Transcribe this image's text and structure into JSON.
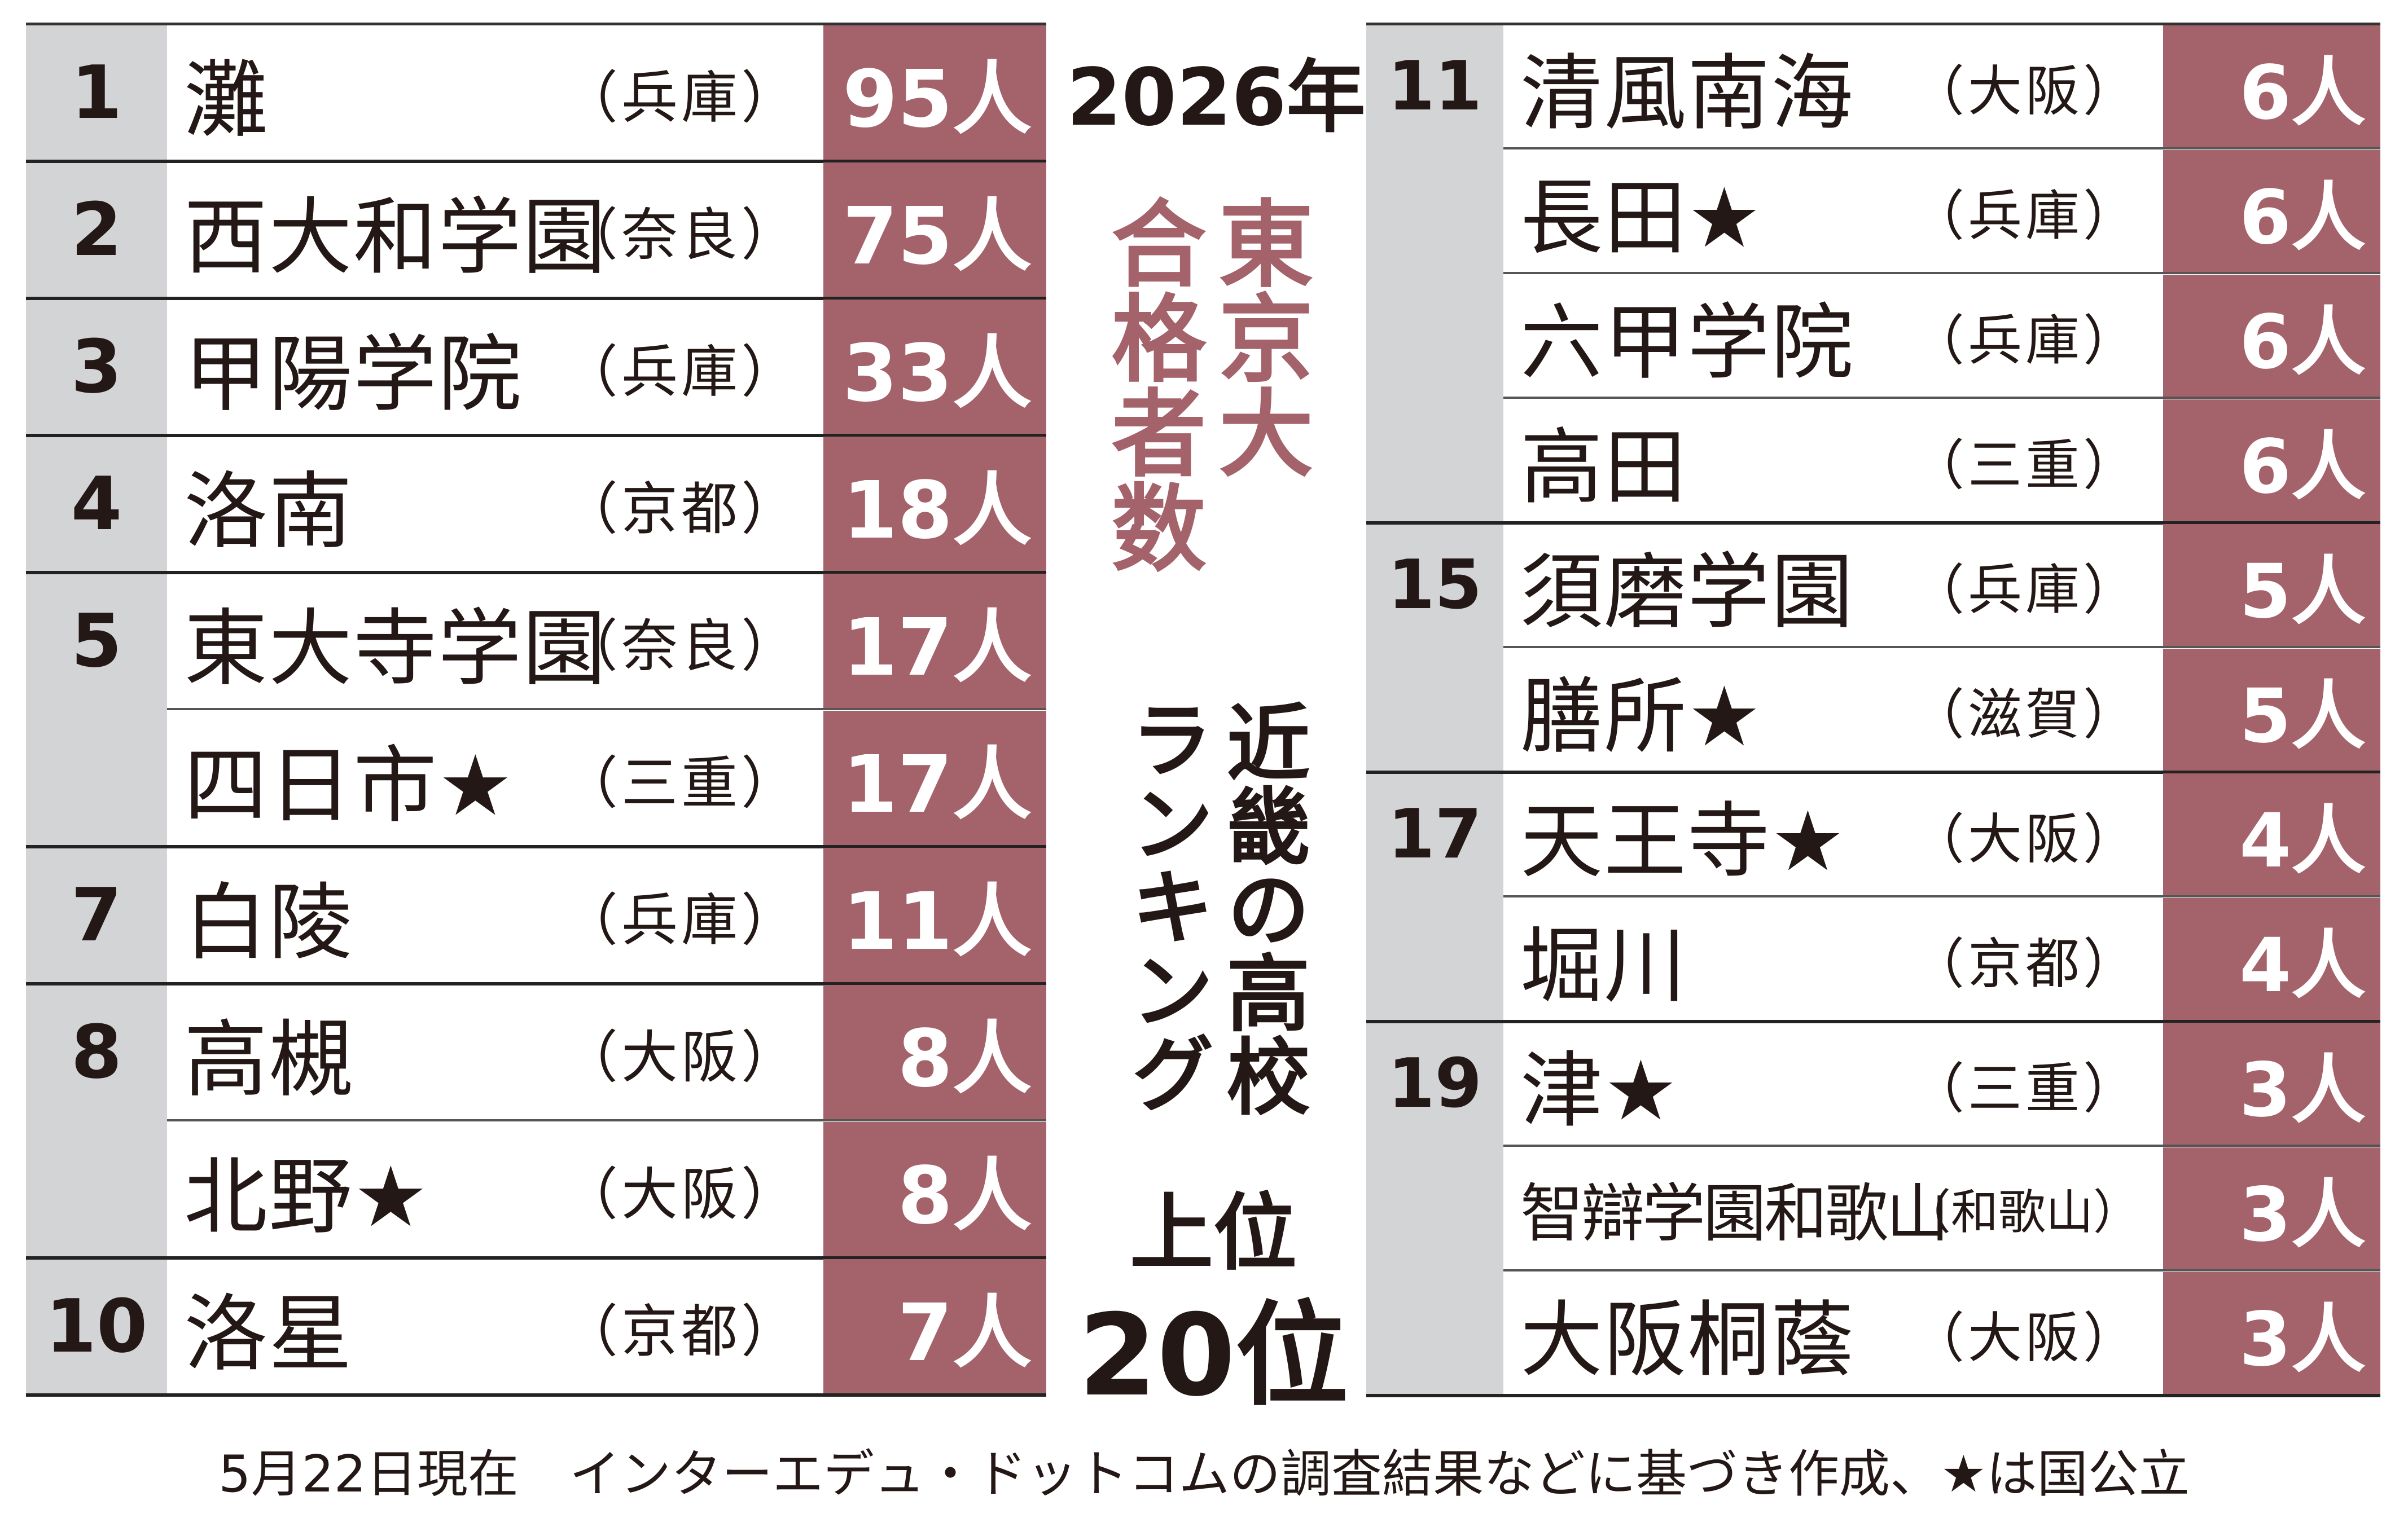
{
  "header": {
    "year": "2026年",
    "title_a": "東京大",
    "title_b": "合格者数",
    "sub_a": "近畿の高校",
    "sub_b": "ランキング",
    "top_a": "上位",
    "top_b": "20位"
  },
  "colors": {
    "accent": "#a4626a",
    "rank_bg": "#d3d4d5",
    "text": "#231815"
  },
  "left_rows": [
    {
      "rank": "1",
      "name": "灘",
      "pref": "（兵庫）",
      "count": "95人"
    },
    {
      "rank": "2",
      "name": "西大和学園",
      "pref": "（奈良）",
      "count": "75人"
    },
    {
      "rank": "3",
      "name": "甲陽学院",
      "pref": "（兵庫）",
      "count": "33人"
    },
    {
      "rank": "4",
      "name": "洛南",
      "pref": "（京都）",
      "count": "18人"
    },
    {
      "rank": "5",
      "name": "東大寺学園",
      "pref": "（奈良）",
      "count": "17人"
    },
    {
      "rank": "",
      "name": "四日市★",
      "pref": "（三重）",
      "count": "17人"
    },
    {
      "rank": "7",
      "name": "白陵",
      "pref": "（兵庫）",
      "count": "11人"
    },
    {
      "rank": "8",
      "name": "高槻",
      "pref": "（大阪）",
      "count": "8人"
    },
    {
      "rank": "",
      "name": "北野★",
      "pref": "（大阪）",
      "count": "8人"
    },
    {
      "rank": "10",
      "name": "洛星",
      "pref": "（京都）",
      "count": "7人"
    }
  ],
  "right_rows": [
    {
      "rank": "11",
      "name": "清風南海",
      "pref": "（大阪）",
      "count": "6人"
    },
    {
      "rank": "",
      "name": "長田★",
      "pref": "（兵庫）",
      "count": "6人"
    },
    {
      "rank": "",
      "name": "六甲学院",
      "pref": "（兵庫）",
      "count": "6人"
    },
    {
      "rank": "",
      "name": "高田",
      "pref": "（三重）",
      "count": "6人"
    },
    {
      "rank": "15",
      "name": "須磨学園",
      "pref": "（兵庫）",
      "count": "5人"
    },
    {
      "rank": "",
      "name": "膳所★",
      "pref": "（滋賀）",
      "count": "5人"
    },
    {
      "rank": "17",
      "name": "天王寺★",
      "pref": "（大阪）",
      "count": "4人"
    },
    {
      "rank": "",
      "name": "堀川",
      "pref": "（京都）",
      "count": "4人"
    },
    {
      "rank": "19",
      "name": "津★",
      "pref": "（三重）",
      "count": "3人"
    },
    {
      "rank": "",
      "name": "智辯学園和歌山",
      "pref": "（和歌山）",
      "count": "3人"
    },
    {
      "rank": "",
      "name": "大阪桐蔭",
      "pref": "（大阪）",
      "count": "3人"
    }
  ],
  "footnote": "5月22日現在　インターエデュ・ドットコムの調査結果などに基づき作成、★は国公立"
}
